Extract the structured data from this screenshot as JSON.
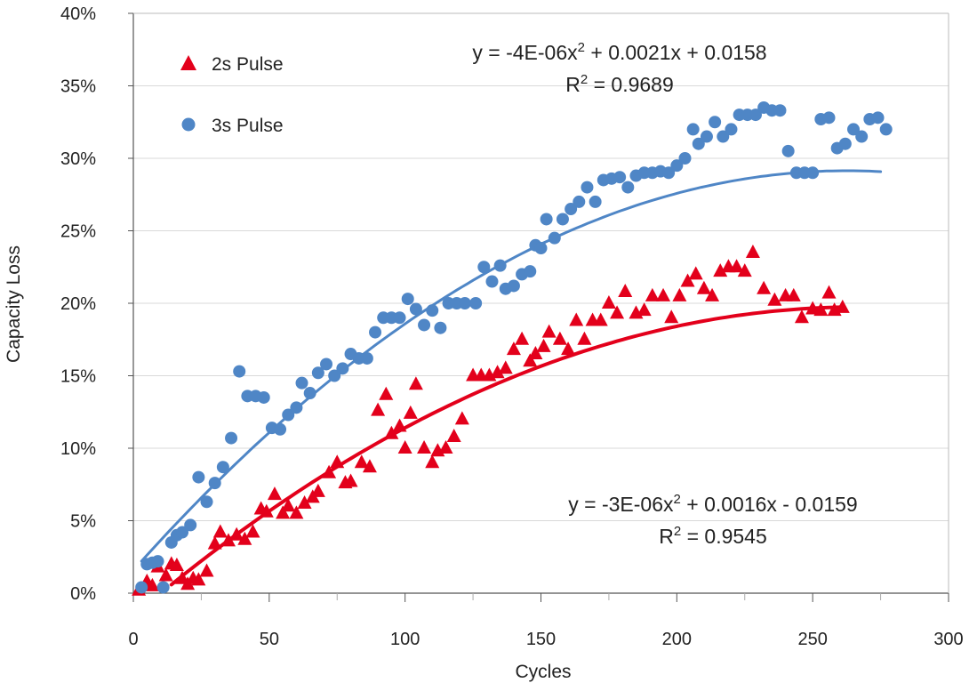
{
  "chart_data": {
    "type": "scatter",
    "title": "",
    "xlabel": "Cycles",
    "ylabel": "Capacity Loss",
    "xlim": [
      0,
      300
    ],
    "ylim": [
      0,
      0.4
    ],
    "x_ticks": [
      0,
      50,
      100,
      150,
      200,
      250,
      300
    ],
    "x_tick_labels": [
      "0",
      "50",
      "100",
      "150",
      "200",
      "250",
      "300"
    ],
    "y_ticks": [
      0,
      0.05,
      0.1,
      0.15,
      0.2,
      0.25,
      0.3,
      0.35,
      0.4
    ],
    "y_tick_labels": [
      "0%",
      "5%",
      "10%",
      "15%",
      "20%",
      "25%",
      "30%",
      "35%",
      "40%"
    ],
    "legend_position": "top-left",
    "series": [
      {
        "name": "2s Pulse",
        "label": "2s Pulse",
        "marker": "triangle",
        "color": "#e3001b",
        "trendline": {
          "equation": "y = -3E-06x² + 0.0016x - 0.0159",
          "eq_main": "y = -3E-06x",
          "eq_sup": "2",
          "eq_rest": " + 0.0016x - 0.0159",
          "r2": "R² = 0.9545",
          "r2_main": "R",
          "r2_sup": "2",
          "r2_rest": " = 0.9545",
          "coefficients": [
            -3e-06,
            0.0016,
            -0.0159
          ],
          "x_range": [
            14,
            260
          ]
        },
        "points": [
          [
            2,
            0.002
          ],
          [
            5,
            0.008
          ],
          [
            7,
            0.005
          ],
          [
            9,
            0.018
          ],
          [
            12,
            0.012
          ],
          [
            14,
            0.02
          ],
          [
            16,
            0.019
          ],
          [
            18,
            0.01
          ],
          [
            20,
            0.006
          ],
          [
            22,
            0.01
          ],
          [
            24,
            0.009
          ],
          [
            27,
            0.015
          ],
          [
            30,
            0.034
          ],
          [
            32,
            0.042
          ],
          [
            35,
            0.036
          ],
          [
            38,
            0.04
          ],
          [
            41,
            0.037
          ],
          [
            44,
            0.042
          ],
          [
            47,
            0.058
          ],
          [
            49,
            0.056
          ],
          [
            52,
            0.068
          ],
          [
            55,
            0.055
          ],
          [
            57,
            0.06
          ],
          [
            60,
            0.055
          ],
          [
            63,
            0.062
          ],
          [
            66,
            0.066
          ],
          [
            68,
            0.07
          ],
          [
            72,
            0.083
          ],
          [
            75,
            0.09
          ],
          [
            78,
            0.076
          ],
          [
            80,
            0.077
          ],
          [
            84,
            0.09
          ],
          [
            87,
            0.087
          ],
          [
            90,
            0.126
          ],
          [
            93,
            0.137
          ],
          [
            95,
            0.11
          ],
          [
            98,
            0.115
          ],
          [
            100,
            0.1
          ],
          [
            102,
            0.124
          ],
          [
            104,
            0.144
          ],
          [
            107,
            0.1
          ],
          [
            110,
            0.09
          ],
          [
            112,
            0.098
          ],
          [
            115,
            0.1
          ],
          [
            118,
            0.108
          ],
          [
            121,
            0.12
          ],
          [
            125,
            0.15
          ],
          [
            128,
            0.15
          ],
          [
            131,
            0.15
          ],
          [
            134,
            0.152
          ],
          [
            137,
            0.155
          ],
          [
            140,
            0.168
          ],
          [
            143,
            0.175
          ],
          [
            146,
            0.16
          ],
          [
            148,
            0.165
          ],
          [
            151,
            0.17
          ],
          [
            153,
            0.18
          ],
          [
            157,
            0.175
          ],
          [
            160,
            0.168
          ],
          [
            163,
            0.188
          ],
          [
            166,
            0.175
          ],
          [
            169,
            0.188
          ],
          [
            172,
            0.188
          ],
          [
            175,
            0.2
          ],
          [
            178,
            0.193
          ],
          [
            181,
            0.208
          ],
          [
            185,
            0.193
          ],
          [
            188,
            0.195
          ],
          [
            191,
            0.205
          ],
          [
            195,
            0.205
          ],
          [
            198,
            0.19
          ],
          [
            201,
            0.205
          ],
          [
            204,
            0.215
          ],
          [
            207,
            0.22
          ],
          [
            210,
            0.21
          ],
          [
            213,
            0.205
          ],
          [
            216,
            0.222
          ],
          [
            219,
            0.225
          ],
          [
            222,
            0.225
          ],
          [
            225,
            0.222
          ],
          [
            228,
            0.235
          ],
          [
            232,
            0.21
          ],
          [
            236,
            0.202
          ],
          [
            240,
            0.205
          ],
          [
            243,
            0.205
          ],
          [
            246,
            0.19
          ],
          [
            250,
            0.196
          ],
          [
            253,
            0.195
          ],
          [
            256,
            0.207
          ],
          [
            258,
            0.195
          ],
          [
            261,
            0.197
          ]
        ]
      },
      {
        "name": "3s Pulse",
        "label": "3s Pulse",
        "marker": "circle",
        "color": "#4f86c6",
        "trendline": {
          "equation": "y = -4E-06x² + 0.0021x + 0.0158",
          "eq_main": "y = -4E-06x",
          "eq_sup": "2",
          "eq_rest": " + 0.0021x + 0.0158",
          "r2": "R² = 0.9689",
          "r2_main": "R",
          "r2_sup": "2",
          "r2_rest": " = 0.9689",
          "coefficients": [
            -4e-06,
            0.0021,
            0.0158
          ],
          "x_range": [
            3,
            275
          ]
        },
        "points": [
          [
            3,
            0.004
          ],
          [
            5,
            0.02
          ],
          [
            7,
            0.021
          ],
          [
            9,
            0.022
          ],
          [
            11,
            0.004
          ],
          [
            14,
            0.035
          ],
          [
            16,
            0.04
          ],
          [
            18,
            0.042
          ],
          [
            21,
            0.047
          ],
          [
            24,
            0.08
          ],
          [
            27,
            0.063
          ],
          [
            30,
            0.076
          ],
          [
            33,
            0.087
          ],
          [
            36,
            0.107
          ],
          [
            39,
            0.153
          ],
          [
            42,
            0.136
          ],
          [
            45,
            0.136
          ],
          [
            48,
            0.135
          ],
          [
            51,
            0.114
          ],
          [
            54,
            0.113
          ],
          [
            57,
            0.123
          ],
          [
            60,
            0.128
          ],
          [
            62,
            0.145
          ],
          [
            65,
            0.138
          ],
          [
            68,
            0.152
          ],
          [
            71,
            0.158
          ],
          [
            74,
            0.15
          ],
          [
            77,
            0.155
          ],
          [
            80,
            0.165
          ],
          [
            83,
            0.162
          ],
          [
            86,
            0.162
          ],
          [
            89,
            0.18
          ],
          [
            92,
            0.19
          ],
          [
            95,
            0.19
          ],
          [
            98,
            0.19
          ],
          [
            101,
            0.203
          ],
          [
            104,
            0.196
          ],
          [
            107,
            0.185
          ],
          [
            110,
            0.195
          ],
          [
            113,
            0.183
          ],
          [
            116,
            0.2
          ],
          [
            119,
            0.2
          ],
          [
            122,
            0.2
          ],
          [
            126,
            0.2
          ],
          [
            129,
            0.225
          ],
          [
            132,
            0.215
          ],
          [
            135,
            0.226
          ],
          [
            137,
            0.21
          ],
          [
            140,
            0.212
          ],
          [
            143,
            0.22
          ],
          [
            146,
            0.222
          ],
          [
            148,
            0.24
          ],
          [
            150,
            0.238
          ],
          [
            152,
            0.258
          ],
          [
            155,
            0.245
          ],
          [
            158,
            0.258
          ],
          [
            161,
            0.265
          ],
          [
            164,
            0.27
          ],
          [
            167,
            0.28
          ],
          [
            170,
            0.27
          ],
          [
            173,
            0.285
          ],
          [
            176,
            0.286
          ],
          [
            179,
            0.287
          ],
          [
            182,
            0.28
          ],
          [
            185,
            0.288
          ],
          [
            188,
            0.29
          ],
          [
            191,
            0.29
          ],
          [
            194,
            0.291
          ],
          [
            197,
            0.29
          ],
          [
            200,
            0.295
          ],
          [
            203,
            0.3
          ],
          [
            206,
            0.32
          ],
          [
            208,
            0.31
          ],
          [
            211,
            0.315
          ],
          [
            214,
            0.325
          ],
          [
            217,
            0.315
          ],
          [
            220,
            0.32
          ],
          [
            223,
            0.33
          ],
          [
            226,
            0.33
          ],
          [
            229,
            0.33
          ],
          [
            232,
            0.335
          ],
          [
            235,
            0.333
          ],
          [
            238,
            0.333
          ],
          [
            241,
            0.305
          ],
          [
            244,
            0.29
          ],
          [
            247,
            0.29
          ],
          [
            250,
            0.29
          ],
          [
            253,
            0.327
          ],
          [
            256,
            0.328
          ],
          [
            259,
            0.307
          ],
          [
            262,
            0.31
          ],
          [
            265,
            0.32
          ],
          [
            268,
            0.315
          ],
          [
            271,
            0.327
          ],
          [
            274,
            0.328
          ],
          [
            277,
            0.32
          ]
        ]
      }
    ]
  }
}
